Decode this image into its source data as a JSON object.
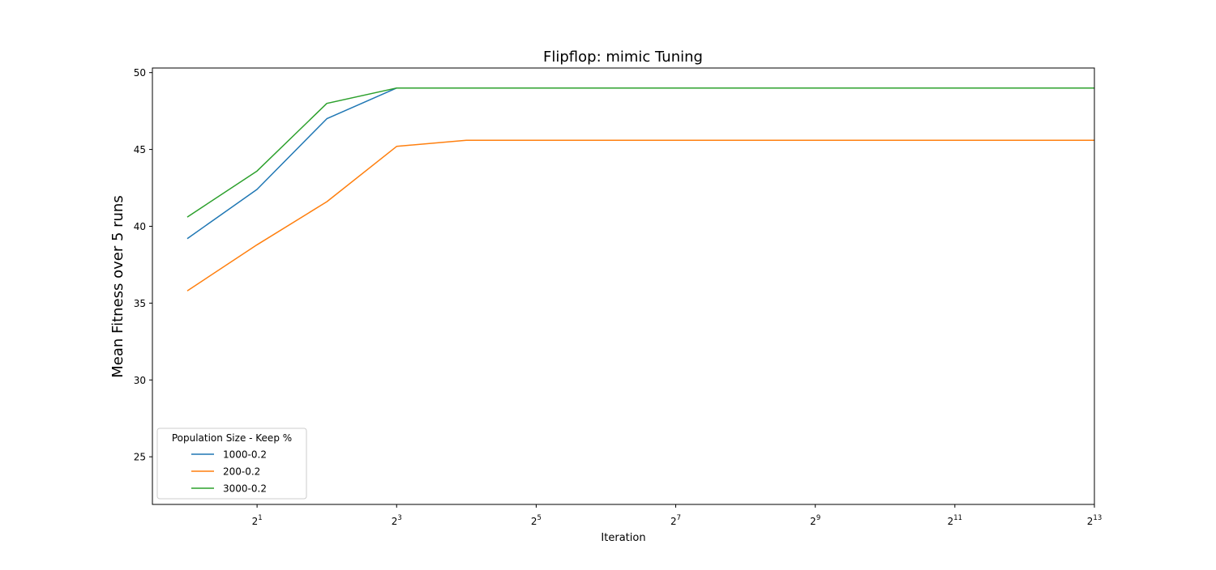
{
  "chart_data": {
    "type": "line",
    "title": "Flipflop: mimic Tuning",
    "xlabel": "Iteration",
    "ylabel": "Mean Fitness over 5 runs",
    "x_scale": "log2",
    "x_ticks": [
      {
        "base": "2",
        "exp": "1",
        "value": 2
      },
      {
        "base": "2",
        "exp": "3",
        "value": 8
      },
      {
        "base": "2",
        "exp": "5",
        "value": 32
      },
      {
        "base": "2",
        "exp": "7",
        "value": 128
      },
      {
        "base": "2",
        "exp": "9",
        "value": 512
      },
      {
        "base": "2",
        "exp": "11",
        "value": 2048
      },
      {
        "base": "2",
        "exp": "13",
        "value": 8192
      }
    ],
    "y_ticks": [
      "25",
      "30",
      "35",
      "40",
      "45",
      "50"
    ],
    "xlim": [
      0.7071,
      8192
    ],
    "ylim": [
      21.9,
      50.3
    ],
    "grid": false,
    "legend": {
      "title": "Population Size - Keep %",
      "position": "lower left"
    },
    "x": [
      1,
      2,
      4,
      8,
      16,
      32,
      64,
      128,
      256,
      512,
      1024,
      2048,
      4096,
      8192
    ],
    "series": [
      {
        "name": "1000-0.2",
        "color": "#1f77b4",
        "values": [
          39.2,
          42.4,
          47.0,
          49.0,
          49.0,
          49.0,
          49.0,
          49.0,
          49.0,
          49.0,
          49.0,
          49.0,
          49.0,
          49.0
        ]
      },
      {
        "name": "200-0.2",
        "color": "#ff7f0e",
        "values": [
          35.8,
          38.8,
          41.6,
          45.2,
          45.6,
          45.6,
          45.6,
          45.6,
          45.6,
          45.6,
          45.6,
          45.6,
          45.6,
          45.6
        ]
      },
      {
        "name": "3000-0.2",
        "color": "#2ca02c",
        "values": [
          40.6,
          43.6,
          48.0,
          49.0,
          49.0,
          49.0,
          49.0,
          49.0,
          49.0,
          49.0,
          49.0,
          49.0,
          49.0,
          49.0
        ]
      }
    ]
  }
}
